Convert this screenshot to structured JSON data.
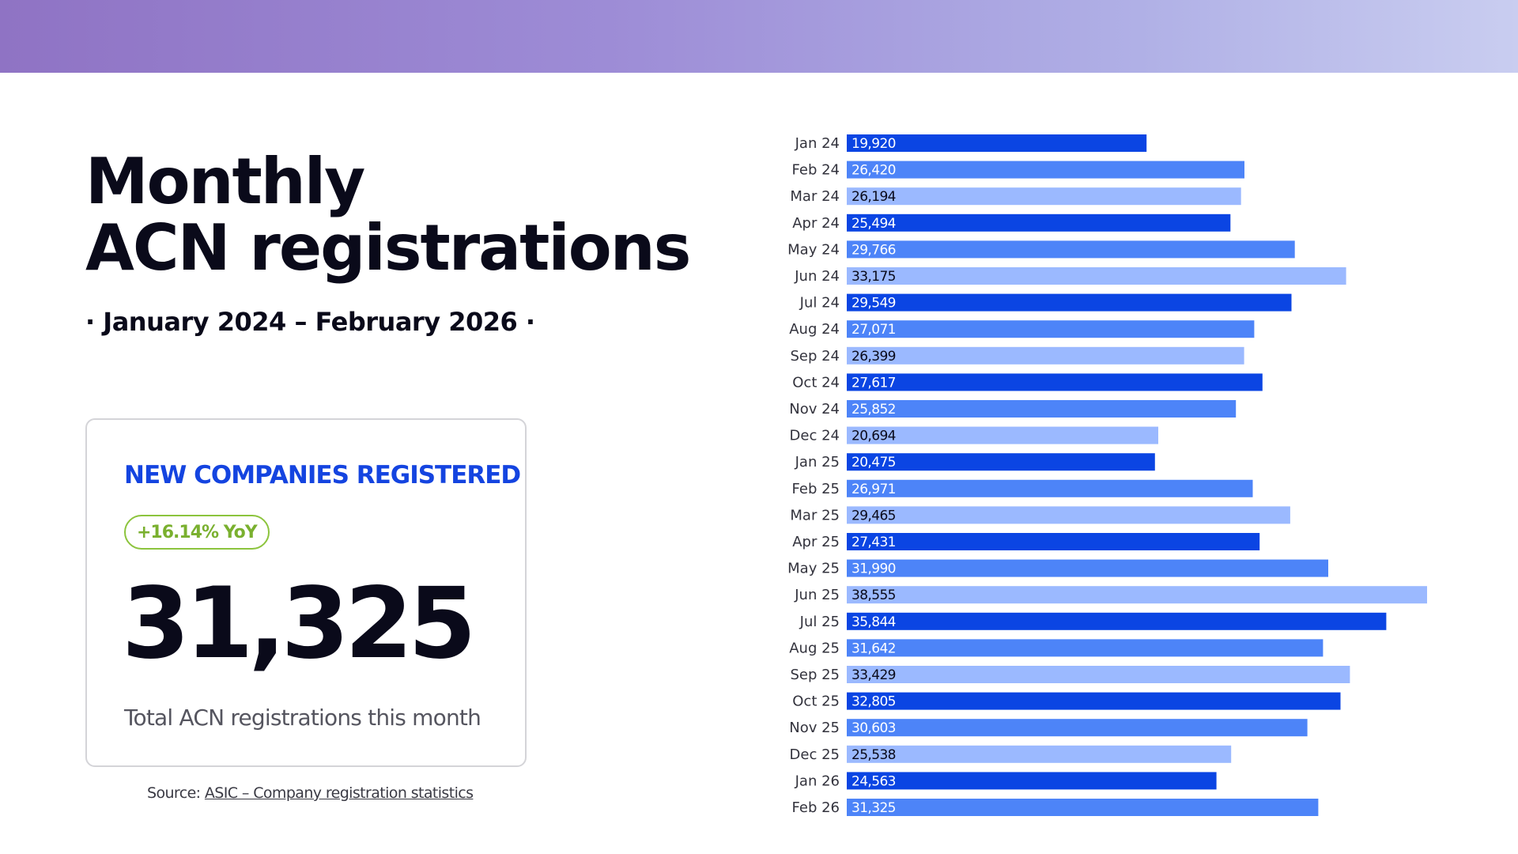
{
  "header": {
    "title_line1": "Monthly",
    "title_line2": "ACN registrations",
    "subtitle": "· January 2024 – February 2026 ·"
  },
  "card": {
    "heading": "NEW COMPANIES REGISTERED",
    "yoy_badge": "+16.14% YoY",
    "value": "31,325",
    "caption": "Total ACN registrations this month"
  },
  "source": {
    "prefix": "Source: ",
    "link_text": "ASIC – Company registration statistics"
  },
  "colors": {
    "banner_start": "#8f73c4",
    "banner_end": "#c9cdf0",
    "bar_dark": "#0b45e3",
    "bar_mid": "#4d84f8",
    "bar_light": "#9bb9ff",
    "heading_blue": "#1444e0",
    "yoy_green": "#7ab02f"
  },
  "chart_data": {
    "type": "bar",
    "orientation": "horizontal",
    "categories": [
      "Jan 24",
      "Feb 24",
      "Mar 24",
      "Apr 24",
      "May 24",
      "Jun 24",
      "Jul 24",
      "Aug 24",
      "Sep 24",
      "Oct 24",
      "Nov 24",
      "Dec 24",
      "Jan 25",
      "Feb 25",
      "Mar 25",
      "Apr 25",
      "May 25",
      "Jun 25",
      "Jul 25",
      "Aug 25",
      "Sep 25",
      "Oct 25",
      "Nov 25",
      "Dec 25",
      "Jan 26",
      "Feb 26"
    ],
    "values": [
      19920,
      26420,
      26194,
      25494,
      29766,
      33175,
      29549,
      27071,
      26399,
      27617,
      25852,
      20694,
      20475,
      26971,
      29465,
      27431,
      31990,
      38555,
      35844,
      31642,
      33429,
      32805,
      30603,
      25538,
      24563,
      31325
    ],
    "value_labels": [
      "19,920",
      "26,420",
      "26,194",
      "25,494",
      "29,766",
      "33,175",
      "29,549",
      "27,071",
      "26,399",
      "27,617",
      "25,852",
      "20,694",
      "20,475",
      "26,971",
      "29,465",
      "27,431",
      "31,990",
      "38,555",
      "35,844",
      "31,642",
      "33,429",
      "32,805",
      "30,603",
      "25,538",
      "24,563",
      "31,325"
    ],
    "color_cycle": [
      "#0b45e3",
      "#4d84f8",
      "#9bb9ff"
    ],
    "label_colors": [
      "#ffffff",
      "#ffffff",
      "#0a0a1a"
    ],
    "xlim": [
      0,
      38555
    ],
    "grid": false,
    "legend": "none"
  }
}
